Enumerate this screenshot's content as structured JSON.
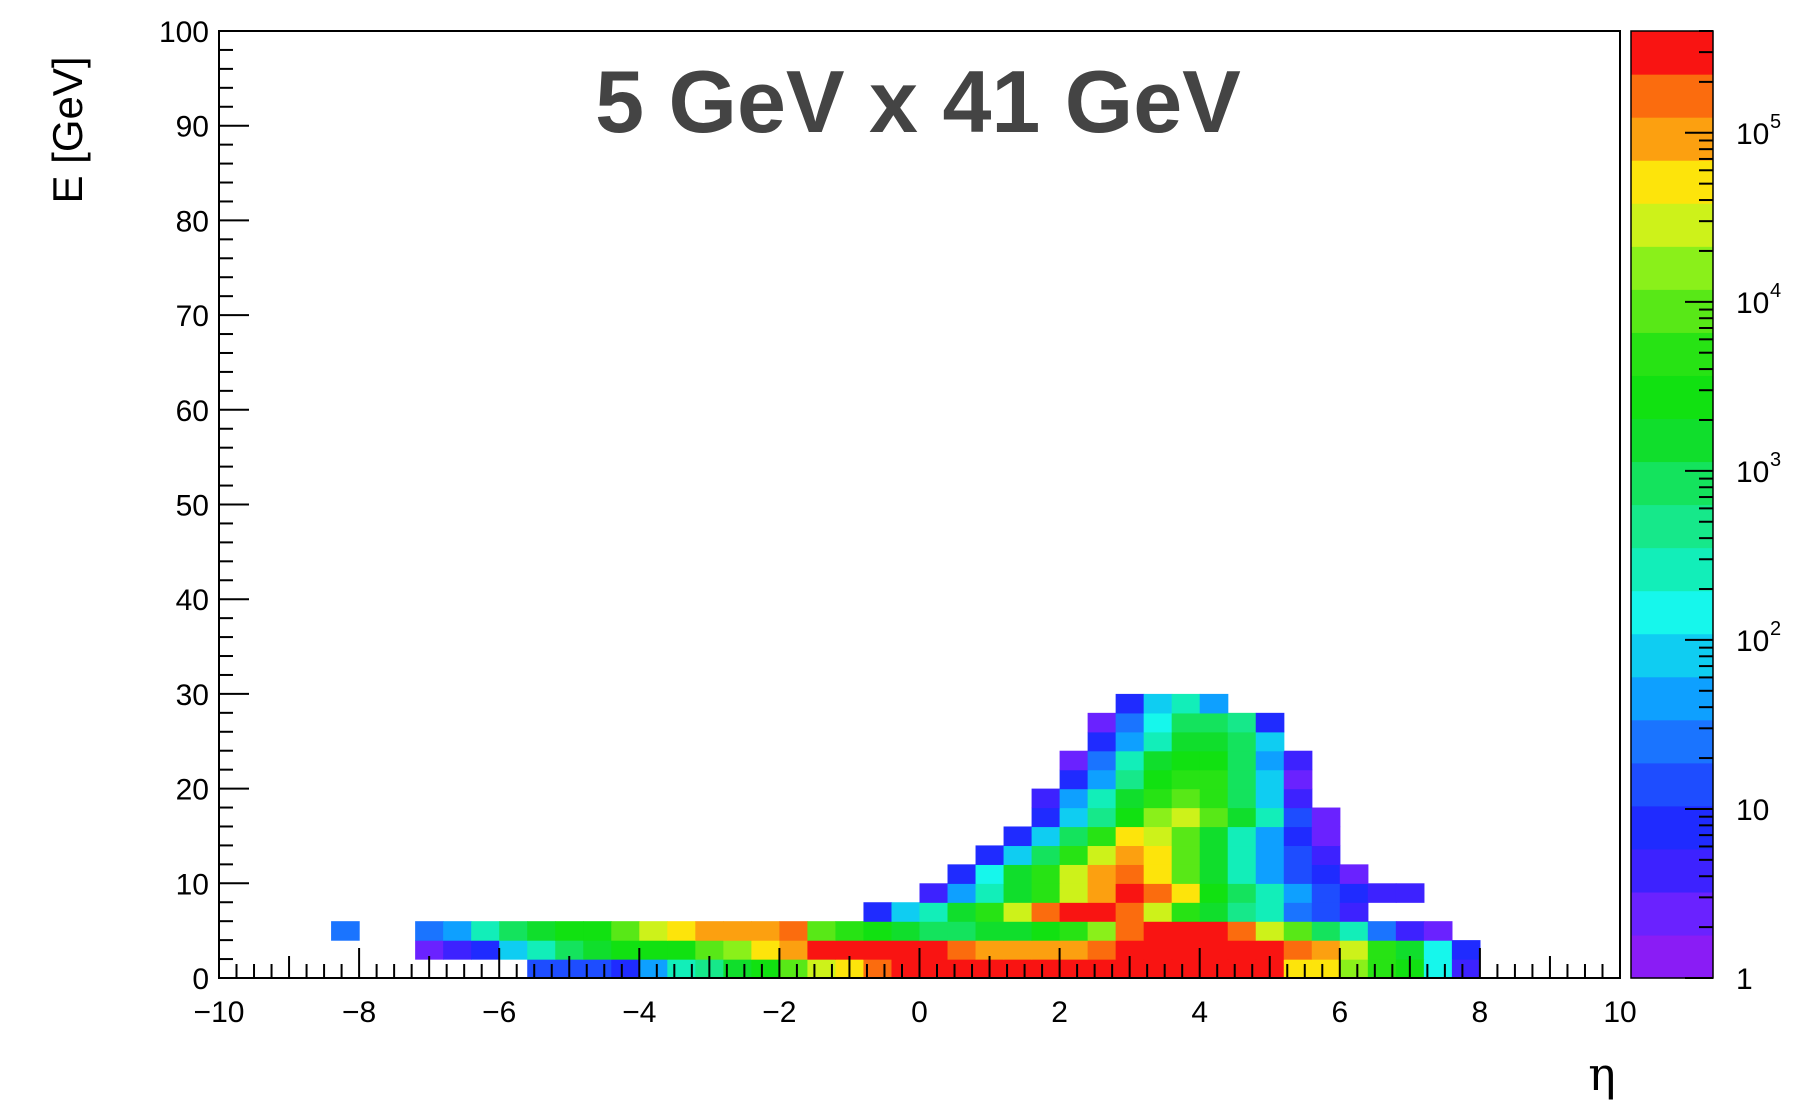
{
  "chart_data": {
    "type": "heatmap",
    "title": "5 GeV x 41 GeV",
    "xlabel": "η",
    "ylabel": "E [GeV]",
    "xlim": [
      -10,
      10
    ],
    "ylim": [
      0,
      100
    ],
    "x_ticks": [
      "−10",
      "−8",
      "−6",
      "−4",
      "−2",
      "0",
      "2",
      "4",
      "6",
      "8",
      "10"
    ],
    "y_ticks": [
      "0",
      "10",
      "20",
      "30",
      "40",
      "50",
      "60",
      "70",
      "80",
      "90",
      "100"
    ],
    "colorbar": {
      "scale": "log",
      "range": [
        1,
        400000
      ],
      "labels": [
        {
          "base": "1",
          "exp": "",
          "value": 1
        },
        {
          "base": "10",
          "exp": "",
          "value": 10
        },
        {
          "base": "10",
          "exp": "2",
          "value": 100
        },
        {
          "base": "10",
          "exp": "3",
          "value": 1000
        },
        {
          "base": "10",
          "exp": "4",
          "value": 10000
        },
        {
          "base": "10",
          "exp": "5",
          "value": 100000
        }
      ],
      "colors": [
        "#8a1cf5",
        "#6a22ff",
        "#3d22ff",
        "#1f2bff",
        "#1e4dff",
        "#1a74ff",
        "#0ea0ff",
        "#0fcdf2",
        "#16f7ec",
        "#12eeb9",
        "#16e88a",
        "#14e35d",
        "#10de2c",
        "#11e111",
        "#27e314",
        "#58e817",
        "#8af01a",
        "#cdf21a",
        "#fde40b",
        "#fca010",
        "#fb6c0e",
        "#f91412"
      ],
      "band_bins": [
        1,
        1.3,
        1.8,
        2.4,
        3.2,
        4.3,
        5.8,
        7.8,
        10.5,
        14,
        19,
        26,
        34,
        46,
        62,
        84,
        113,
        150,
        205,
        275,
        370,
        500,
        680,
        910,
        1230,
        1660,
        2230,
        3000,
        4000,
        5400,
        7300,
        9800,
        13200,
        17800,
        24000,
        32000,
        43000,
        58000,
        78000,
        105000,
        140000,
        190000,
        260000,
        400000
      ]
    },
    "bin_width_x": 0.4,
    "bin_height_y": 2,
    "rows": [
      {
        "y0": 0,
        "x0": -5.6,
        "levels": [
          4,
          4,
          4,
          3,
          6,
          9,
          10,
          12,
          13,
          15,
          17,
          18,
          20,
          21,
          21,
          21,
          21,
          21,
          21,
          21,
          21,
          21,
          21,
          21,
          21,
          21,
          21,
          18,
          18,
          16,
          14,
          13,
          8,
          2
        ]
      },
      {
        "y0": 2,
        "x0": -7.2,
        "levels": [
          1,
          2,
          3,
          7,
          9,
          11,
          12,
          13,
          13,
          13,
          15,
          16,
          18,
          19,
          21,
          21,
          21,
          21,
          21,
          20,
          19,
          19,
          19,
          19,
          20,
          21,
          21,
          21,
          21,
          21,
          21,
          20,
          19,
          17,
          14,
          12,
          8,
          3
        ]
      },
      {
        "y0": 4,
        "x0": -8.4,
        "levels": [
          5,
          -1,
          -1,
          5,
          6,
          9,
          11,
          12,
          13,
          13,
          15,
          17,
          18,
          19,
          19,
          19,
          20,
          15,
          14,
          13,
          12,
          11,
          11,
          12,
          12,
          13,
          14,
          16,
          20,
          21,
          21,
          21,
          20,
          17,
          15,
          11,
          9,
          5,
          2,
          1
        ]
      },
      {
        "y0": 6,
        "x0": -0.8,
        "levels": [
          3,
          7,
          9,
          12,
          14,
          17,
          20,
          21,
          21,
          20,
          17,
          14,
          12,
          10,
          9,
          5,
          4,
          2
        ]
      },
      {
        "y0": 8,
        "x0": 0,
        "levels": [
          2,
          6,
          9,
          12,
          14,
          17,
          19,
          21,
          20,
          18,
          13,
          11,
          9,
          6,
          4,
          3,
          2,
          2
        ]
      },
      {
        "y0": 10,
        "x0": 0.4,
        "levels": [
          3,
          8,
          12,
          14,
          17,
          19,
          20,
          18,
          15,
          12,
          9,
          6,
          4,
          3,
          1
        ]
      },
      {
        "y0": 12,
        "x0": 0.8,
        "levels": [
          3,
          7,
          11,
          14,
          17,
          19,
          18,
          15,
          12,
          9,
          6,
          4,
          2
        ]
      },
      {
        "y0": 14,
        "x0": 1.2,
        "levels": [
          3,
          7,
          11,
          14,
          18,
          17,
          15,
          12,
          9,
          6,
          3,
          1
        ]
      },
      {
        "y0": 16,
        "x0": 1.6,
        "levels": [
          3,
          7,
          10,
          13,
          16,
          17,
          15,
          12,
          9,
          4,
          1
        ]
      },
      {
        "y0": 18,
        "x0": 1.6,
        "levels": [
          2,
          6,
          9,
          12,
          14,
          15,
          14,
          11,
          7,
          2
        ]
      },
      {
        "y0": 20,
        "x0": 2.0,
        "levels": [
          3,
          6,
          10,
          13,
          14,
          14,
          11,
          7,
          1
        ]
      },
      {
        "y0": 22,
        "x0": 2.0,
        "levels": [
          1,
          5,
          9,
          12,
          13,
          13,
          11,
          6,
          2
        ]
      },
      {
        "y0": 24,
        "x0": 2.4,
        "levels": [
          3,
          6,
          9,
          12,
          12,
          11,
          7
        ]
      },
      {
        "y0": 26,
        "x0": 2.4,
        "levels": [
          1,
          5,
          8,
          11,
          11,
          10,
          3
        ]
      },
      {
        "y0": 28,
        "x0": 2.8,
        "levels": [
          3,
          7,
          9,
          6
        ]
      }
    ]
  }
}
